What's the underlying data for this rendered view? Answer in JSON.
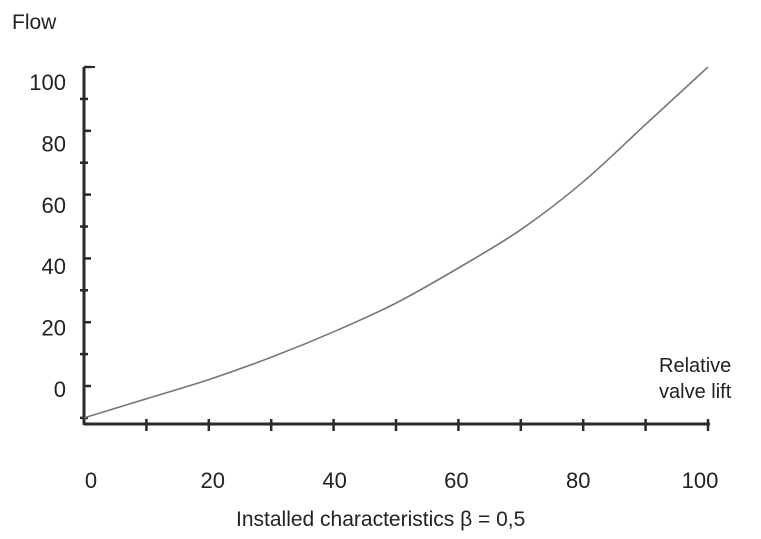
{
  "chart_data": {
    "type": "line",
    "ylabel": "Flow",
    "xlabel_lines": [
      "Relative",
      "valve lift"
    ],
    "caption": "Installed characteristics β = 0,5",
    "xlim": [
      0,
      100
    ],
    "ylim_labels": [
      0,
      100
    ],
    "x_ticks": [
      "0",
      "20",
      "40",
      "60",
      "80",
      "100"
    ],
    "y_ticks": [
      "0",
      "20",
      "40",
      "60",
      "80",
      "100"
    ],
    "grid": false,
    "series": [
      {
        "color": "#777777",
        "x": [
          0,
          10,
          20,
          30,
          40,
          50,
          60,
          70,
          80,
          90,
          100
        ],
        "y": [
          -10,
          -4,
          2,
          9,
          17,
          26,
          37,
          49,
          64,
          82,
          100
        ]
      }
    ]
  }
}
